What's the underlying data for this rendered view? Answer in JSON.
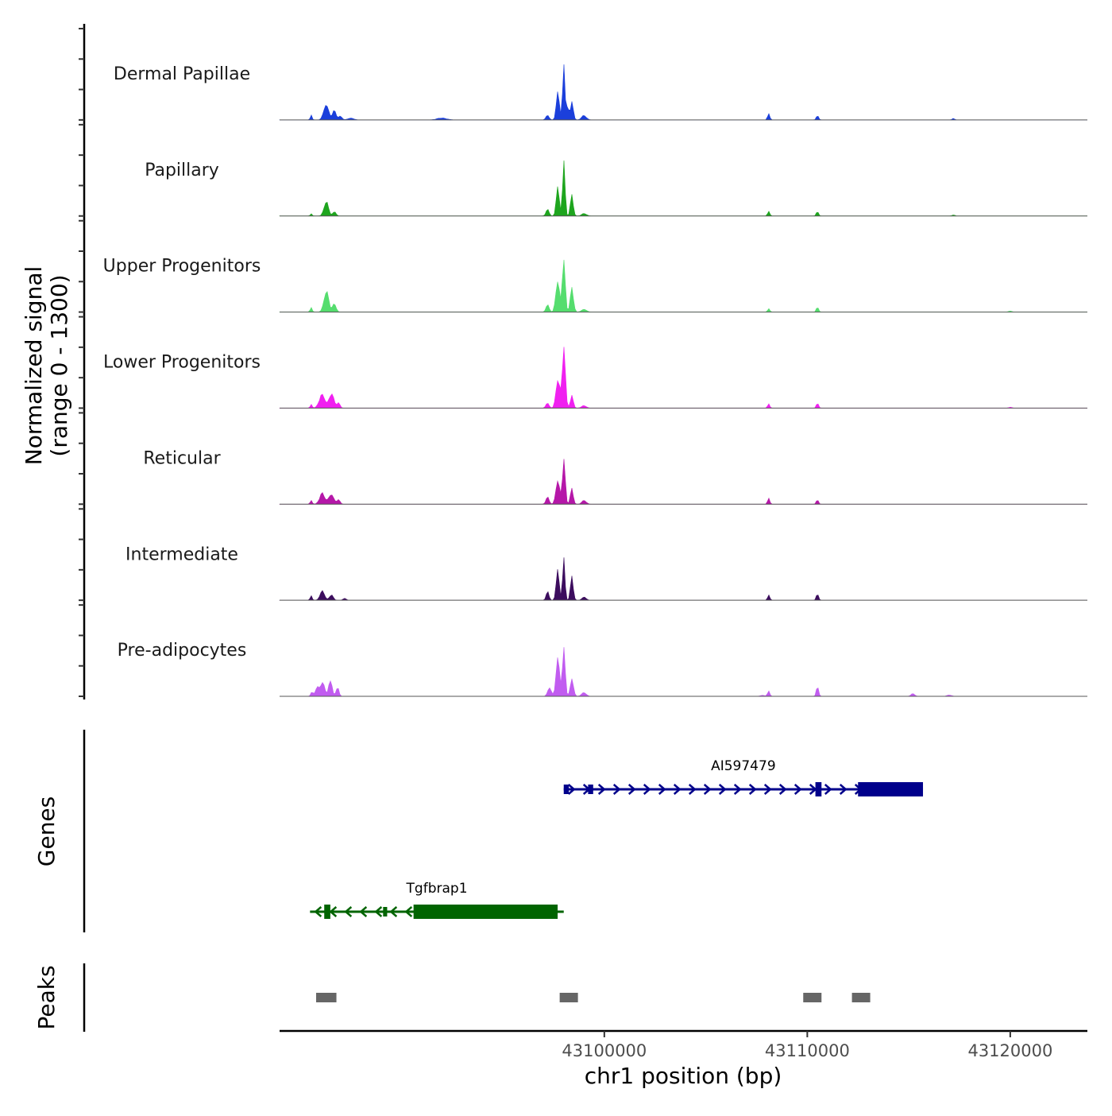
{
  "chart_data": {
    "type": "area",
    "title": "",
    "chromosome": "chr1",
    "xlabel": "chr1 position (bp)",
    "xlim": [
      43084000,
      43123800
    ],
    "x_ticks": [
      43100000,
      43110000,
      43120000
    ],
    "x_tick_labels": [
      "43100000",
      "43110000",
      "43120000"
    ],
    "signal_axis_label_line1": "Normalized signal",
    "signal_axis_label_line2": "(range 0 - 1300)",
    "ylim": [
      0,
      1300
    ],
    "genes_axis_label": "Genes",
    "peaks_axis_label": "Peaks",
    "series": [
      {
        "name": "Dermal Papillae",
        "color": "#1b3fdb",
        "peaks": [
          [
            43085560,
            80,
            45
          ],
          [
            43086300,
            280,
            120
          ],
          [
            43086700,
            150,
            90
          ],
          [
            43087000,
            60,
            80
          ],
          [
            43087500,
            30,
            150
          ],
          [
            43092000,
            30,
            250
          ],
          [
            43097200,
            80,
            80
          ],
          [
            43097700,
            480,
            70
          ],
          [
            43098000,
            900,
            60
          ],
          [
            43098200,
            300,
            40
          ],
          [
            43098400,
            340,
            70
          ],
          [
            43099000,
            70,
            120
          ],
          [
            43108100,
            100,
            55
          ],
          [
            43110500,
            80,
            55
          ],
          [
            43117200,
            25,
            60
          ]
        ]
      },
      {
        "name": "Papillary",
        "color": "#1ea51e",
        "peaks": [
          [
            43085560,
            40,
            45
          ],
          [
            43086300,
            230,
            110
          ],
          [
            43086700,
            80,
            80
          ],
          [
            43097200,
            100,
            80
          ],
          [
            43097700,
            560,
            70
          ],
          [
            43098000,
            900,
            60
          ],
          [
            43098400,
            340,
            70
          ],
          [
            43099000,
            40,
            120
          ],
          [
            43108100,
            70,
            55
          ],
          [
            43110500,
            80,
            55
          ],
          [
            43117200,
            15,
            80
          ]
        ]
      },
      {
        "name": "Upper Progenitors",
        "color": "#55dd6e",
        "peaks": [
          [
            43085560,
            70,
            50
          ],
          [
            43086300,
            330,
            120
          ],
          [
            43086700,
            130,
            90
          ],
          [
            43097200,
            120,
            80
          ],
          [
            43097700,
            520,
            90
          ],
          [
            43098000,
            1000,
            70
          ],
          [
            43098400,
            370,
            80
          ],
          [
            43099000,
            50,
            120
          ],
          [
            43108100,
            60,
            55
          ],
          [
            43110500,
            85,
            55
          ],
          [
            43120000,
            20,
            80
          ]
        ]
      },
      {
        "name": "Lower Progenitors",
        "color": "#f020f0",
        "peaks": [
          [
            43085560,
            60,
            50
          ],
          [
            43086100,
            230,
            140
          ],
          [
            43086550,
            240,
            120
          ],
          [
            43086900,
            80,
            80
          ],
          [
            43097200,
            90,
            80
          ],
          [
            43097700,
            460,
            90
          ],
          [
            43098000,
            1000,
            80
          ],
          [
            43098400,
            230,
            70
          ],
          [
            43099000,
            40,
            120
          ],
          [
            43108100,
            70,
            55
          ],
          [
            43110500,
            90,
            55
          ],
          [
            43120000,
            15,
            80
          ]
        ]
      },
      {
        "name": "Reticular",
        "color": "#b517a8",
        "peaks": [
          [
            43085560,
            70,
            50
          ],
          [
            43086100,
            170,
            130
          ],
          [
            43086550,
            180,
            120
          ],
          [
            43086900,
            70,
            80
          ],
          [
            43097200,
            110,
            80
          ],
          [
            43097700,
            430,
            90
          ],
          [
            43098000,
            720,
            70
          ],
          [
            43098400,
            260,
            70
          ],
          [
            43099000,
            60,
            110
          ],
          [
            43108100,
            90,
            55
          ],
          [
            43110500,
            80,
            55
          ]
        ]
      },
      {
        "name": "Intermediate",
        "color": "#3c0d5e",
        "peaks": [
          [
            43085560,
            70,
            50
          ],
          [
            43086100,
            160,
            110
          ],
          [
            43086550,
            90,
            90
          ],
          [
            43087200,
            30,
            80
          ],
          [
            43097200,
            140,
            70
          ],
          [
            43097700,
            540,
            70
          ],
          [
            43098000,
            800,
            55
          ],
          [
            43098400,
            360,
            70
          ],
          [
            43099000,
            60,
            100
          ],
          [
            43108100,
            90,
            55
          ],
          [
            43110500,
            110,
            55
          ]
        ]
      },
      {
        "name": "Pre-adipocytes",
        "color": "#c15cf0",
        "peaks": [
          [
            43085600,
            70,
            60
          ],
          [
            43085900,
            160,
            110
          ],
          [
            43086150,
            230,
            90
          ],
          [
            43086500,
            290,
            80
          ],
          [
            43086850,
            150,
            70
          ],
          [
            43097300,
            160,
            90
          ],
          [
            43097700,
            650,
            80
          ],
          [
            43098000,
            820,
            70
          ],
          [
            43098400,
            300,
            80
          ],
          [
            43099000,
            60,
            120
          ],
          [
            43107800,
            15,
            120
          ],
          [
            43108100,
            90,
            55
          ],
          [
            43110500,
            180,
            55
          ],
          [
            43115200,
            50,
            90
          ],
          [
            43117000,
            20,
            120
          ]
        ]
      }
    ],
    "genes": [
      {
        "name": "AI597479",
        "strand": "+",
        "color": "#00008b",
        "start": 43098000,
        "end": 43115700,
        "exons": [
          [
            43098000,
            43098250,
            "utr"
          ],
          [
            43099200,
            43099450,
            "utr"
          ],
          [
            43110400,
            43110700,
            "coding"
          ],
          [
            43112500,
            43115700,
            "coding"
          ]
        ]
      },
      {
        "name": "Tgfbrap1",
        "strand": "-",
        "color": "#006400",
        "start": 43085500,
        "end": 43098000,
        "exons": [
          [
            43086200,
            43086500,
            "coding"
          ],
          [
            43089100,
            43089300,
            "utr"
          ],
          [
            43090600,
            43097700,
            "coding"
          ]
        ]
      }
    ],
    "peak_regions": [
      [
        43085800,
        43086800
      ],
      [
        43097800,
        43098700
      ],
      [
        43109800,
        43110700
      ],
      [
        43112200,
        43113100
      ]
    ]
  }
}
